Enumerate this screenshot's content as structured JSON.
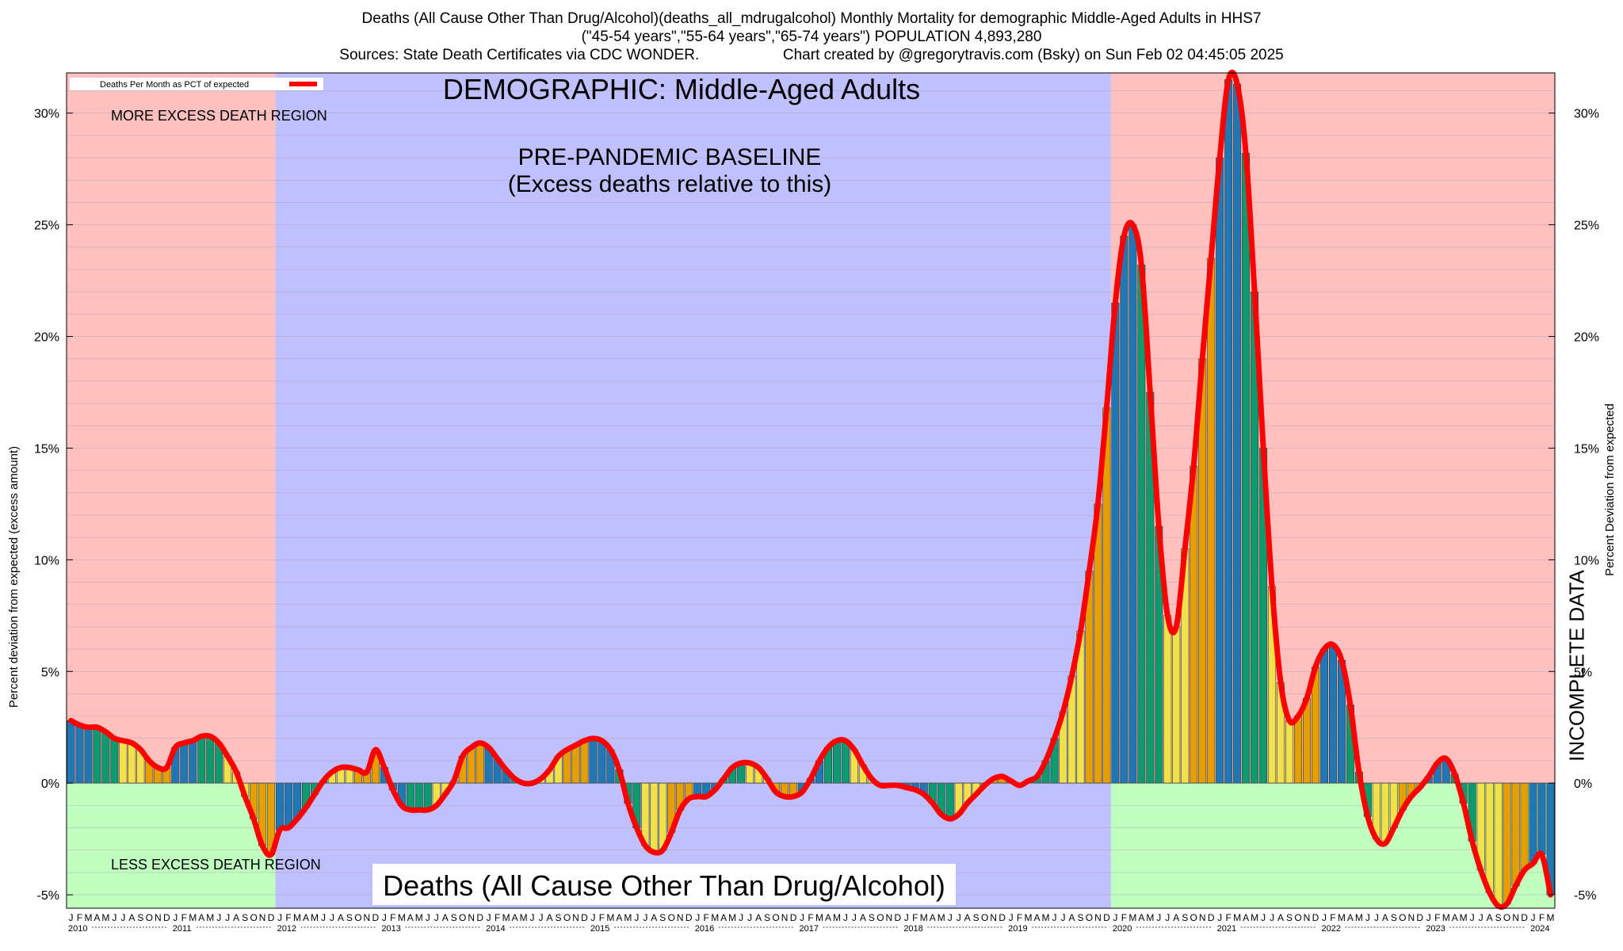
{
  "header": {
    "line1": "Deaths (All Cause Other Than Drug/Alcohol)(deaths_all_mdrugalcohol) Monthly Mortality for demographic Middle-Aged Adults in HHS7",
    "line2": "(\"45-54 years\",\"55-64 years\",\"65-74 years\") POPULATION 4,893,280",
    "line3": "Sources: State Death Certificates via CDC WONDER.                    Chart created by @gregorytravis.com (Bsky) on Sun Feb 02 04:45:05 2025"
  },
  "labels": {
    "demographic": "DEMOGRAPHIC: Middle-Aged Adults",
    "baseline_line1": "PRE-PANDEMIC BASELINE",
    "baseline_line2": "(Excess deaths relative to this)",
    "more_region": "MORE EXCESS DEATH REGION",
    "less_region": "LESS EXCESS DEATH REGION",
    "bottom_title": "Deaths (All Cause Other Than Drug/Alcohol)",
    "incomplete": "INCOMPLETE DATA",
    "legend": "Deaths Per Month as PCT of expected"
  },
  "colors": {
    "more_region": "#ffc0c0",
    "less_region": "#c0ffc0",
    "baseline_region": "#c0c0ff",
    "line": "#ff0000",
    "bar_q1": "#1f77b4",
    "bar_q2": "#0c9a6e",
    "bar_q3": "#f2e24a",
    "bar_q4": "#e69f00"
  },
  "chart_data": {
    "type": "bar",
    "title": "Deaths (All Cause Other Than Drug/Alcohol)(deaths_all_mdrugalcohol) Monthly Mortality for demographic Middle-Aged Adults in HHS7",
    "ylabel": "Percent deviation from expected (excess amount)",
    "ylabel_right": "Percent Deviation from expected",
    "ylim": [
      -5.6,
      31.8
    ],
    "yticks": [
      "30%",
      "25%",
      "20%",
      "15%",
      "10%",
      "5%",
      "0%",
      "-5%"
    ],
    "yticks_values": [
      30,
      25,
      20,
      15,
      10,
      5,
      0,
      -5
    ],
    "start": "2010-01",
    "years": [
      "2010",
      "2011",
      "2012",
      "2013",
      "2014",
      "2015",
      "2016",
      "2017",
      "2018",
      "2019",
      "2020",
      "2021",
      "2022",
      "2023",
      "2024"
    ],
    "month_letters": [
      "J",
      "F",
      "M",
      "A",
      "M",
      "J",
      "J",
      "A",
      "S",
      "O",
      "N",
      "D"
    ],
    "baseline_period": [
      "2012-01",
      "2019-12"
    ],
    "incomplete_from": "2024-09",
    "legend_position": "top-left",
    "grid": true,
    "series": [
      {
        "name": "Deaths Per Month as PCT of expected",
        "values": [
          2.8,
          2.6,
          2.5,
          2.5,
          2.3,
          2.0,
          1.9,
          1.8,
          1.5,
          1.0,
          0.7,
          0.7,
          1.6,
          1.8,
          1.9,
          2.1,
          2.1,
          1.8,
          1.2,
          0.5,
          -0.6,
          -1.6,
          -2.8,
          -3.2,
          -2.1,
          -2.0,
          -1.6,
          -1.1,
          -0.5,
          0.1,
          0.5,
          0.7,
          0.7,
          0.6,
          0.5,
          1.5,
          0.7,
          -0.3,
          -1.0,
          -1.2,
          -1.2,
          -1.2,
          -1.0,
          -0.5,
          0.1,
          1.2,
          1.6,
          1.8,
          1.6,
          1.1,
          0.6,
          0.2,
          0.0,
          0.0,
          0.2,
          0.6,
          1.2,
          1.5,
          1.7,
          1.9,
          2.0,
          1.9,
          1.5,
          0.6,
          -0.9,
          -2.0,
          -2.8,
          -3.1,
          -3.0,
          -2.2,
          -1.2,
          -0.7,
          -0.6,
          -0.6,
          -0.3,
          0.2,
          0.7,
          0.9,
          0.9,
          0.7,
          0.2,
          -0.4,
          -0.6,
          -0.6,
          -0.4,
          0.2,
          1.0,
          1.6,
          1.9,
          1.9,
          1.5,
          0.8,
          0.2,
          -0.1,
          -0.1,
          -0.1,
          -0.2,
          -0.3,
          -0.5,
          -0.9,
          -1.4,
          -1.6,
          -1.4,
          -0.9,
          -0.5,
          -0.1,
          0.2,
          0.3,
          0.1,
          -0.1,
          0.1,
          0.3,
          1.0,
          2.0,
          3.2,
          4.8,
          6.8,
          9.5,
          12.5,
          16.8,
          21.5,
          24.5,
          25.0,
          23.2,
          17.5,
          11.5,
          7.5,
          7.0,
          10.5,
          14.2,
          19.0,
          23.5,
          28.0,
          31.5,
          31.3,
          28.2,
          22.0,
          15.0,
          8.8,
          4.5,
          2.8,
          3.0,
          3.8,
          5.2,
          6.0,
          6.2,
          5.5,
          3.5,
          0.5,
          -1.5,
          -2.5,
          -2.7,
          -2.0,
          -1.2,
          -0.6,
          -0.2,
          0.3,
          0.9,
          1.1,
          0.4,
          -0.9,
          -2.6,
          -3.9,
          -4.9,
          -5.5,
          -5.4,
          -4.6,
          -3.9,
          -3.6,
          -3.2,
          -5.0
        ]
      }
    ]
  }
}
